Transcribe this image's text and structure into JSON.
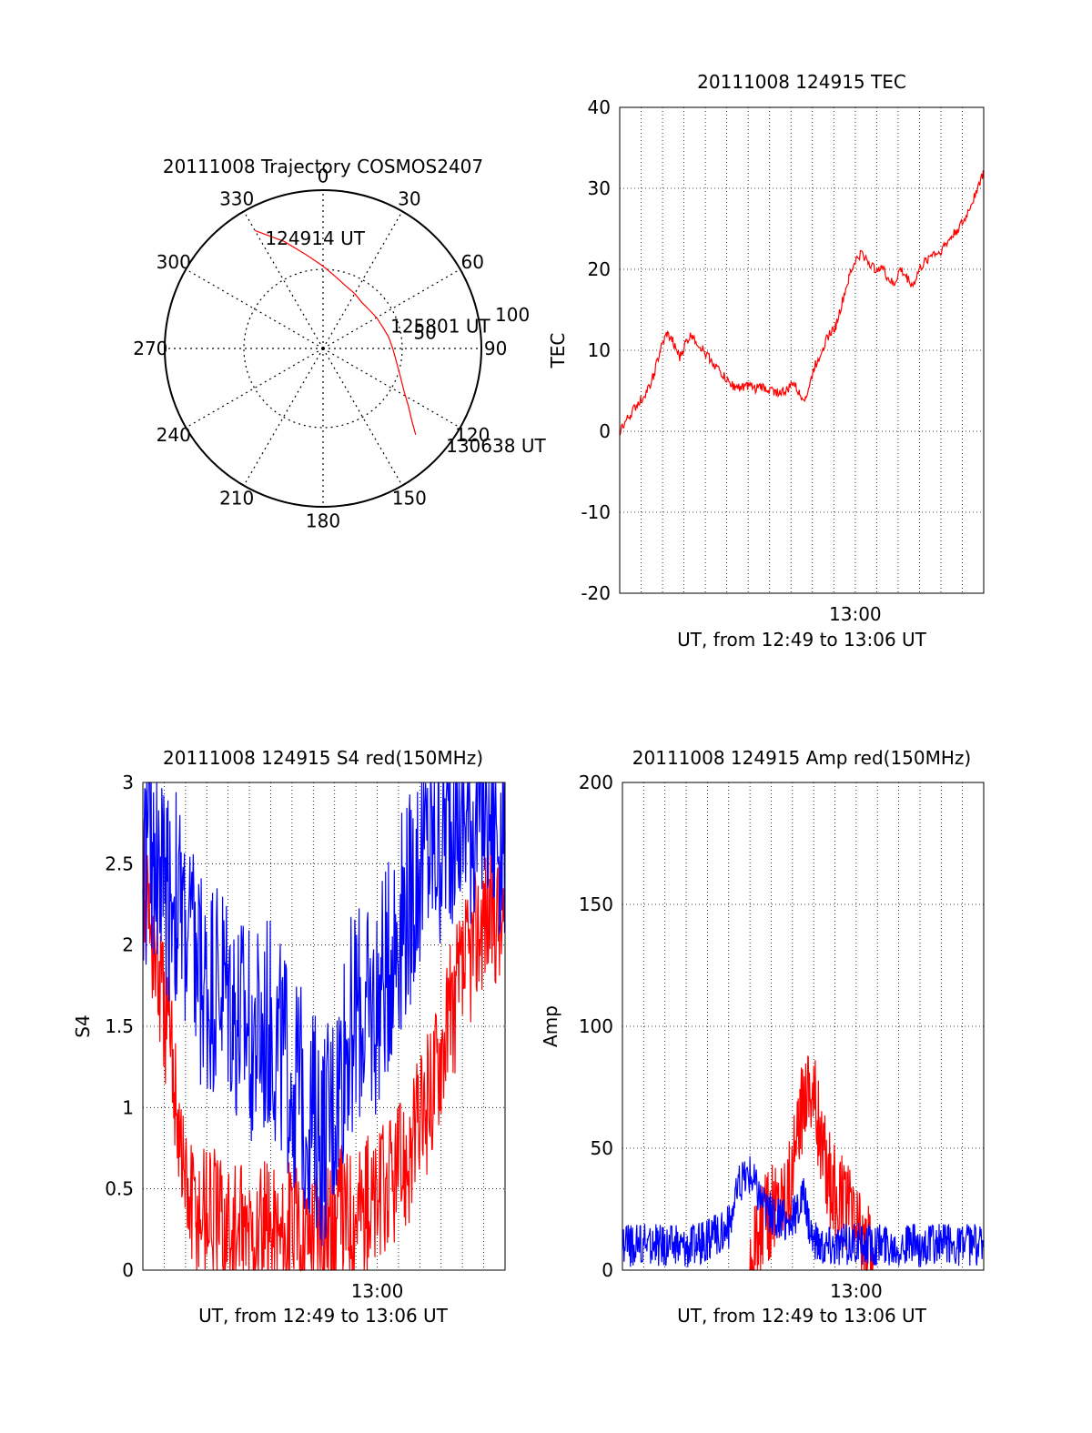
{
  "chart_data": [
    {
      "type": "polar",
      "title": "20111008 Trajectory COSMOS2407",
      "angle_labels": [
        "0",
        "30",
        "60",
        "90",
        "120",
        "150",
        "180",
        "210",
        "240",
        "270",
        "300",
        "330"
      ],
      "radius_labels": [
        "50",
        "100"
      ],
      "track": {
        "color": "#ff0000",
        "points": [
          [
            330,
            86
          ],
          [
            340,
            72
          ],
          [
            350,
            60
          ],
          [
            0,
            52
          ],
          [
            10,
            46
          ],
          [
            20,
            42
          ],
          [
            30,
            40
          ],
          [
            40,
            38
          ],
          [
            50,
            38
          ],
          [
            60,
            39
          ],
          [
            70,
            40
          ],
          [
            80,
            42
          ],
          [
            90,
            44
          ],
          [
            100,
            47
          ],
          [
            110,
            52
          ],
          [
            118,
            58
          ],
          [
            124,
            65
          ],
          [
            129,
            72
          ],
          [
            133,
            80
          ]
        ]
      },
      "annotations": [
        {
          "text": "124914 UT",
          "az": 333,
          "r": 78
        },
        {
          "text": "125801 UT",
          "az": 72,
          "r": 46
        },
        {
          "text": "130638 UT",
          "az": 128,
          "r": 100
        }
      ]
    },
    {
      "type": "line",
      "title": "20111008 124915 TEC",
      "xlabel": "UT, from 12:49 to 13:06 UT",
      "ylabel": "TEC",
      "xlim": [
        0,
        17
      ],
      "ylim": [
        -20,
        40
      ],
      "xticks": [
        {
          "x": 11,
          "label": "13:00"
        }
      ],
      "yticks": [
        -20,
        -10,
        0,
        10,
        20,
        30,
        40
      ],
      "grid": true,
      "series": [
        {
          "color": "#ff0000",
          "x": [
            0.0,
            0.5,
            1.0,
            1.3,
            1.6,
            1.9,
            2.2,
            2.5,
            2.8,
            3.1,
            3.4,
            3.6,
            3.9,
            4.2,
            4.5,
            4.8,
            5.1,
            5.4,
            5.7,
            6.0,
            6.3,
            6.6,
            6.9,
            7.2,
            7.5,
            7.8,
            8.1,
            8.4,
            8.7,
            8.9,
            9.0,
            9.1,
            9.3,
            9.5,
            9.8,
            10.1,
            10.4,
            10.7,
            11.0,
            11.3,
            11.6,
            11.9,
            12.2,
            12.5,
            12.8,
            13.1,
            13.4,
            13.7,
            14.0,
            14.3,
            14.6,
            14.9,
            15.2,
            15.5,
            15.8,
            16.1,
            16.4,
            16.7,
            17.0
          ],
          "y": [
            0,
            2,
            4,
            5,
            7,
            10,
            12,
            11,
            9,
            11,
            12,
            11,
            10,
            9,
            8,
            7,
            6,
            5.5,
            5.5,
            5.6,
            5.3,
            5.5,
            5.2,
            5.0,
            4.8,
            5.0,
            6,
            4.5,
            4.2,
            6,
            7,
            8,
            9,
            10.5,
            12,
            13,
            16,
            19,
            21,
            22,
            21,
            20,
            20.5,
            19,
            18,
            20,
            19,
            18,
            20,
            21,
            22,
            22,
            23,
            24,
            25,
            26,
            28,
            30,
            32
          ]
        }
      ]
    },
    {
      "type": "line",
      "title": "20111008 124915 S4 red(150MHz)",
      "xlabel": "UT, from 12:49 to 13:06 UT",
      "ylabel": "S4",
      "xlim": [
        0,
        17
      ],
      "ylim": [
        0,
        3
      ],
      "xticks": [
        {
          "x": 11,
          "label": "13:00"
        }
      ],
      "yticks": [
        0,
        0.5,
        1,
        1.5,
        2,
        2.5,
        3
      ],
      "ytick_labels": [
        "0",
        "0.5",
        "1",
        "1.5",
        "2",
        "2.5",
        "3"
      ],
      "grid": true,
      "series": [
        {
          "color": "#ff0000",
          "x": [
            0,
            0.5,
            1,
            1.5,
            2,
            2.5,
            3,
            3.5,
            4,
            4.5,
            5,
            5.5,
            6,
            6.5,
            7,
            7.5,
            8,
            8.5,
            9,
            9.5,
            10,
            10.5,
            11,
            11.5,
            12,
            12.5,
            13,
            13.5,
            14,
            14.5,
            15,
            15.5,
            16,
            16.5,
            17
          ],
          "y": [
            2.4,
            2.0,
            1.6,
            1.2,
            0.5,
            0.35,
            0.4,
            0.3,
            0.25,
            0.2,
            0.2,
            0.2,
            0.25,
            0.2,
            0.25,
            0.2,
            0.3,
            0.3,
            0.3,
            0.35,
            0.4,
            0.4,
            0.4,
            0.5,
            0.6,
            0.7,
            0.9,
            1.1,
            1.4,
            1.6,
            1.8,
            2.0,
            2.2,
            2.2,
            2.1
          ]
        },
        {
          "color": "#0000ff",
          "x": [
            0,
            0.5,
            1,
            1.5,
            2,
            2.5,
            3,
            3.5,
            4,
            4.5,
            5,
            5.5,
            6,
            6.5,
            7,
            7.5,
            8,
            8.5,
            9,
            9.5,
            10,
            10.5,
            11,
            11.5,
            12,
            12.5,
            13,
            13.5,
            14,
            14.5,
            15,
            15.5,
            16,
            16.5,
            17
          ],
          "y": [
            2.5,
            2.6,
            2.4,
            2.3,
            2.1,
            1.9,
            1.7,
            1.8,
            1.7,
            1.5,
            1.5,
            1.4,
            1.5,
            1.3,
            1.2,
            1.1,
            0.9,
            0.8,
            1.0,
            1.4,
            1.6,
            1.5,
            1.6,
            1.9,
            2.1,
            2.3,
            2.5,
            2.6,
            2.7,
            2.8,
            2.8,
            2.8,
            2.9,
            2.8,
            2.7
          ]
        }
      ]
    },
    {
      "type": "line",
      "title": "20111008 124915 Amp red(150MHz)",
      "xlabel": "UT, from 12:49 to 13:06 UT",
      "ylabel": "Amp",
      "xlim": [
        0,
        17
      ],
      "ylim": [
        0,
        200
      ],
      "xticks": [
        {
          "x": 11,
          "label": "13:00"
        }
      ],
      "yticks": [
        0,
        50,
        100,
        150,
        200
      ],
      "grid": true,
      "series": [
        {
          "color": "#ff0000",
          "x": [
            6.0,
            6.5,
            7.0,
            7.5,
            8.0,
            8.3,
            8.5,
            8.7,
            8.9,
            9.1,
            9.3,
            9.5,
            9.8,
            10.2,
            10.6,
            11.0,
            11.4,
            11.8
          ],
          "y": [
            5,
            15,
            25,
            32,
            40,
            55,
            70,
            80,
            75,
            70,
            55,
            45,
            35,
            28,
            25,
            20,
            12,
            5
          ]
        },
        {
          "color": "#0000ff",
          "x": [
            0,
            1,
            2,
            3,
            4,
            5,
            5.5,
            6.0,
            6.5,
            7.0,
            7.5,
            8.0,
            8.5,
            9.0,
            9.5,
            10,
            11,
            12,
            13,
            14,
            15,
            16,
            17
          ],
          "y": [
            10,
            10,
            11,
            10,
            12,
            18,
            35,
            40,
            30,
            22,
            20,
            20,
            30,
            12,
            10,
            10,
            11,
            10,
            10,
            10,
            10,
            10,
            10
          ]
        }
      ]
    }
  ]
}
